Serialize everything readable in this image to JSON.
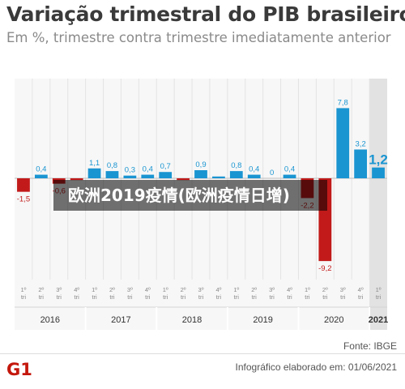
{
  "title": "Variação trimestral do PIB brasileiro",
  "subtitle": "Em %, trimestre contra trimestre imediatamente anterior",
  "source": "Fonte: IBGE",
  "credit": "Infográfico elaborado em: 01/06/2021",
  "logo_text": "G1",
  "overlay_text": "欧洲2019疫情(欧洲疫情日增)",
  "colors": {
    "positive": "#1a95d1",
    "negative": "#c21a1a",
    "highlight_bg": "#e2e2e2",
    "chart_bg": "#f7f7f7",
    "logo": "#c4170c"
  },
  "chart_data": {
    "type": "bar",
    "title": "Variação trimestral do PIB brasileiro",
    "subtitle": "Em %, trimestre contra trimestre imediatamente anterior",
    "ylim": [
      -10,
      8.5
    ],
    "grid": "vertical",
    "categories": [
      "1º tri",
      "2º tri",
      "3º tri",
      "4º tri",
      "1º tri",
      "2º tri",
      "3º tri",
      "4º tri",
      "1º tri",
      "2º tri",
      "3º tri",
      "4º tri",
      "1º tri",
      "2º tri",
      "3º tri",
      "4º tri",
      "1º tri",
      "2º tri",
      "3º tri",
      "4º tri",
      "1º tri"
    ],
    "quarter_labels": [
      "1º",
      "2º",
      "3º",
      "4º",
      "1º",
      "2º",
      "3º",
      "4º",
      "1º",
      "2º",
      "3º",
      "4º",
      "1º",
      "2º",
      "3º",
      "4º",
      "1º",
      "2º",
      "3º",
      "4º",
      "1º"
    ],
    "quarter_sub": "tri",
    "values": [
      -1.5,
      0.4,
      -0.6,
      -0.2,
      1.1,
      0.8,
      0.3,
      0.4,
      0.7,
      -0.2,
      0.9,
      0.2,
      0.8,
      0.4,
      0,
      0.4,
      -2.2,
      -9.2,
      7.8,
      3.2,
      1.2
    ],
    "labels": [
      "-1,5",
      "0,4",
      "-0,6",
      "",
      "1,1",
      "0,8",
      "0,3",
      "0,4",
      "0,7",
      "",
      "0,9",
      "",
      "0,8",
      "0,4",
      "0",
      "0,4",
      "-2,2",
      "-9,2",
      "7,8",
      "3,2",
      "1,2"
    ],
    "years": [
      "2016",
      "2017",
      "2018",
      "2019",
      "2020",
      "2021"
    ],
    "highlight_last": true
  }
}
